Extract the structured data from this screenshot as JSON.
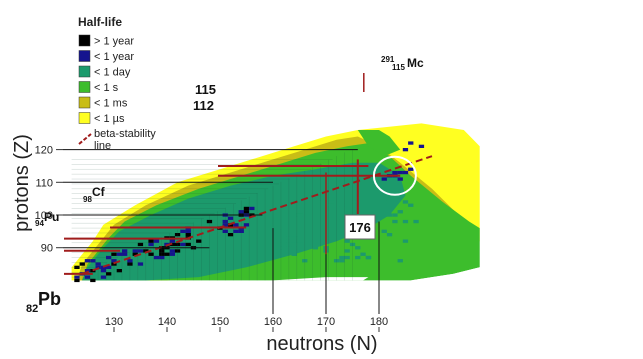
{
  "chart_data": {
    "type": "heatmap",
    "title": "",
    "xlabel": "neutrons (N)",
    "ylabel": "protons (Z)",
    "xlim": [
      121,
      198
    ],
    "ylim": [
      80,
      126
    ],
    "x_ticks": [
      130,
      140,
      150,
      160,
      170,
      180
    ],
    "y_ticks": [
      90,
      100,
      110,
      120
    ],
    "legend": {
      "title": "Half-life",
      "placement": "top-left",
      "items": [
        {
          "label": "> 1 year",
          "color": "#000000"
        },
        {
          "label": "< 1 year",
          "color": "#15148e"
        },
        {
          "label": "< 1 day",
          "color": "#1c9a6c"
        },
        {
          "label": "< 1 s",
          "color": "#3dbd2c"
        },
        {
          "label": "< 1 ms",
          "color": "#c9bd16"
        },
        {
          "label": "< 1 µs",
          "color": "#ffff21"
        }
      ],
      "line_item": {
        "label": "beta-stability line",
        "color": "#a01c1c"
      }
    },
    "beta_stability_line": [
      [
        124,
        82
      ],
      [
        190,
        118
      ]
    ],
    "annotations": [
      {
        "text": "Pb",
        "prefix": "82",
        "N": 126,
        "Z": 82
      },
      {
        "text": "Pu",
        "prefix": "94",
        "N": 150,
        "Z": 94
      },
      {
        "text": "Cf",
        "prefix": "98",
        "N": 154,
        "Z": 98
      },
      {
        "text": "Mc",
        "prefix_top": "291",
        "prefix_bottom": "115",
        "N": 176,
        "Z": 115
      },
      {
        "text": "115",
        "kind": "magic-Z",
        "Z": 115
      },
      {
        "text": "112",
        "kind": "magic-Z",
        "Z": 112
      },
      {
        "text": "176",
        "kind": "magic-N",
        "N": 176
      }
    ],
    "island_of_stability": {
      "N": 183,
      "Z": 112
    }
  }
}
